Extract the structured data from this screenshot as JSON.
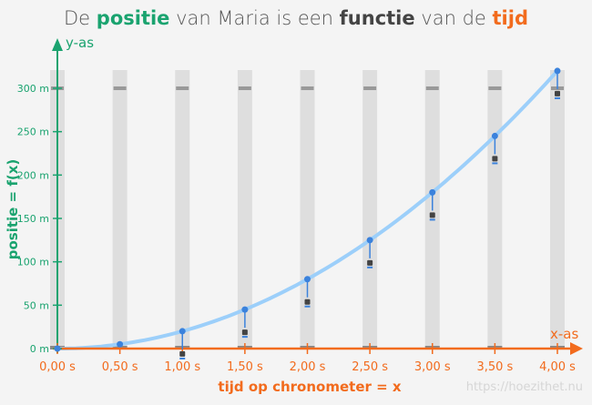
{
  "title": {
    "p1": "De ",
    "p2": "positie",
    "p3": " van Maria is een ",
    "p4": "functie",
    "p5": " van de ",
    "p6": "tijd"
  },
  "watermark": "https://hoezithet.nu",
  "chart_data": {
    "type": "line",
    "function": "y = 20·x²",
    "x": [
      0,
      0.5,
      1,
      1.5,
      2,
      2.5,
      3,
      3.5,
      4
    ],
    "y": [
      0,
      5,
      20,
      45,
      80,
      125,
      180,
      245,
      320
    ],
    "xlim": [
      0,
      4
    ],
    "ylim": [
      0,
      320
    ],
    "x_ticks": [
      "0,00 s",
      "0,50 s",
      "1,00 s",
      "1,50 s",
      "2,00 s",
      "2,50 s",
      "3,00 s",
      "3,50 s",
      "4,00 s"
    ],
    "y_ticks": [
      "0 m",
      "50 m",
      "100 m",
      "150 m",
      "200 m",
      "250 m",
      "300 m"
    ],
    "y_tick_values": [
      0,
      50,
      100,
      150,
      200,
      250,
      300
    ],
    "finish_line": 300,
    "xlabel": "tijd op chronometer = x",
    "ylabel": "positie = f(x)",
    "x_axis_name": "x-as",
    "y_axis_name": "y-as",
    "colors": {
      "x_axis": "#f26b1d",
      "y_axis": "#1aa36f",
      "curve": "#9ccffa",
      "points": "#3b82dc",
      "strips": "#dedede"
    }
  }
}
